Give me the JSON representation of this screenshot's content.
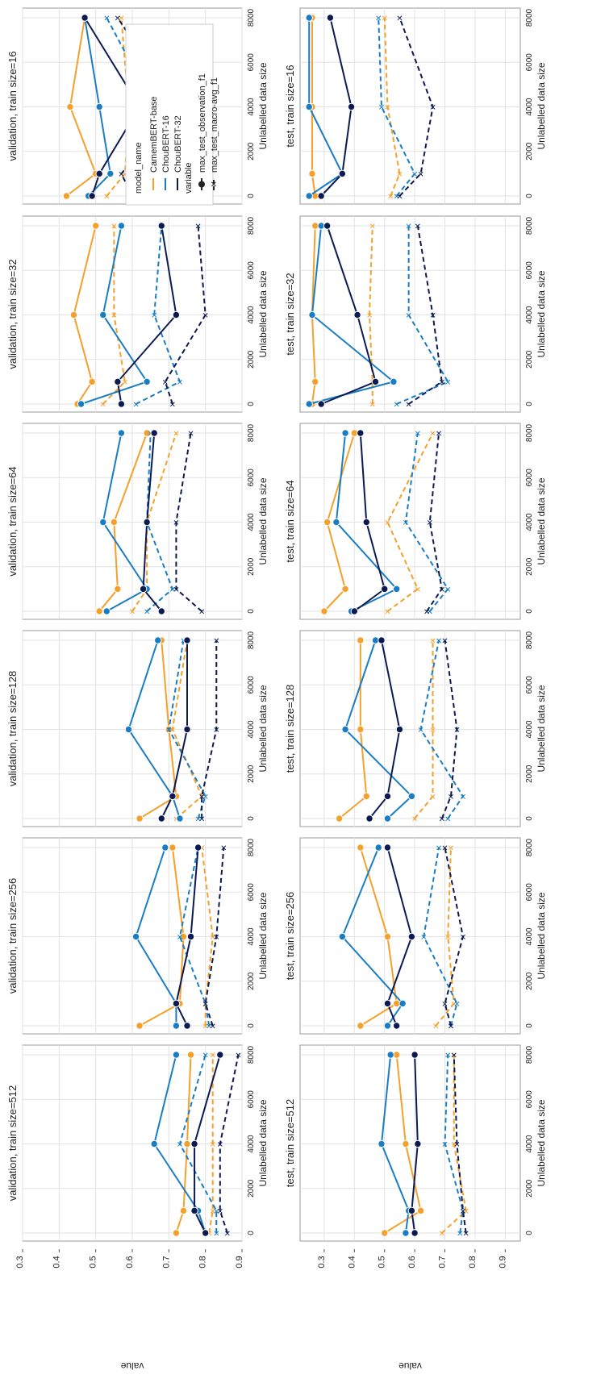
{
  "figure": {
    "ylabel_text": "value",
    "xlabel_text": "Unlabelled data size",
    "legend": {
      "title1": "model_name",
      "models": [
        "CamemBERT-base",
        "ChouBERT-16",
        "ChouBERT-32"
      ],
      "title2": "variable",
      "variables": [
        "max_test_observation_f1",
        "max_test_macro-avg_f1"
      ]
    },
    "colors": {
      "CamemBERT-base": "#f5a02a",
      "ChouBERT-16": "#1a7dc4",
      "ChouBERT-32": "#0c1a52"
    }
  },
  "chart_data": [
    {
      "type": "line",
      "title": "validation, train size=16",
      "xlabel": "Unlabelled data size",
      "ylabel": "value",
      "xlim": [
        0,
        8000
      ],
      "ylim": [
        0.3,
        0.9
      ],
      "x": [
        0,
        1000,
        4000,
        8000
      ],
      "series": [
        {
          "model": "CamemBERT-base",
          "variable": "max_test_observation_f1",
          "values": [
            0.42,
            0.5,
            0.43,
            0.47
          ]
        },
        {
          "model": "CamemBERT-base",
          "variable": "max_test_macro-avg_f1",
          "values": [
            0.53,
            0.58,
            0.59,
            0.57
          ]
        },
        {
          "model": "ChouBERT-16",
          "variable": "max_test_observation_f1",
          "values": [
            0.48,
            0.54,
            0.51,
            0.47
          ]
        },
        {
          "model": "ChouBERT-16",
          "variable": "max_test_macro-avg_f1",
          "values": [
            0.59,
            0.65,
            0.66,
            0.53
          ]
        },
        {
          "model": "ChouBERT-32",
          "variable": "max_test_observation_f1",
          "values": [
            0.49,
            0.51,
            0.62,
            0.47
          ]
        },
        {
          "model": "ChouBERT-32",
          "variable": "max_test_macro-avg_f1",
          "values": [
            0.6,
            0.57,
            0.72,
            0.56
          ]
        }
      ]
    },
    {
      "type": "line",
      "title": "validation, train size=32",
      "xlabel": "Unlabelled data size",
      "ylabel": "value",
      "xlim": [
        0,
        8000
      ],
      "ylim": [
        0.3,
        0.9
      ],
      "x": [
        0,
        1000,
        4000,
        8000
      ],
      "series": [
        {
          "model": "CamemBERT-base",
          "variable": "max_test_observation_f1",
          "values": [
            0.45,
            0.49,
            0.44,
            0.5
          ]
        },
        {
          "model": "CamemBERT-base",
          "variable": "max_test_macro-avg_f1",
          "values": [
            0.52,
            0.58,
            0.55,
            0.55
          ]
        },
        {
          "model": "ChouBERT-16",
          "variable": "max_test_observation_f1",
          "values": [
            0.46,
            0.64,
            0.52,
            0.57
          ]
        },
        {
          "model": "ChouBERT-16",
          "variable": "max_test_macro-avg_f1",
          "values": [
            0.61,
            0.73,
            0.66,
            0.68
          ]
        },
        {
          "model": "ChouBERT-32",
          "variable": "max_test_observation_f1",
          "values": [
            0.57,
            0.56,
            0.72,
            0.68
          ]
        },
        {
          "model": "ChouBERT-32",
          "variable": "max_test_macro-avg_f1",
          "values": [
            0.71,
            0.69,
            0.8,
            0.78
          ]
        }
      ]
    },
    {
      "type": "line",
      "title": "validation, train size=64",
      "xlabel": "Unlabelled data size",
      "ylabel": "value",
      "xlim": [
        0,
        8000
      ],
      "ylim": [
        0.3,
        0.9
      ],
      "x": [
        0,
        1000,
        4000,
        8000
      ],
      "series": [
        {
          "model": "CamemBERT-base",
          "variable": "max_test_observation_f1",
          "values": [
            0.51,
            0.56,
            0.55,
            0.64
          ]
        },
        {
          "model": "CamemBERT-base",
          "variable": "max_test_macro-avg_f1",
          "values": [
            0.6,
            0.64,
            0.64,
            0.72
          ]
        },
        {
          "model": "ChouBERT-16",
          "variable": "max_test_observation_f1",
          "values": [
            0.53,
            0.64,
            0.52,
            0.57
          ]
        },
        {
          "model": "ChouBERT-16",
          "variable": "max_test_macro-avg_f1",
          "values": [
            0.64,
            0.71,
            0.64,
            0.65
          ]
        },
        {
          "model": "ChouBERT-32",
          "variable": "max_test_observation_f1",
          "values": [
            0.68,
            0.63,
            0.64,
            0.66
          ]
        },
        {
          "model": "ChouBERT-32",
          "variable": "max_test_macro-avg_f1",
          "values": [
            0.79,
            0.72,
            0.72,
            0.76
          ]
        }
      ]
    },
    {
      "type": "line",
      "title": "validation, train size=128",
      "xlabel": "Unlabelled data size",
      "ylabel": "value",
      "xlim": [
        0,
        8000
      ],
      "ylim": [
        0.3,
        0.9
      ],
      "x": [
        0,
        1000,
        4000,
        8000
      ],
      "series": [
        {
          "model": "CamemBERT-base",
          "variable": "max_test_observation_f1",
          "values": [
            0.62,
            0.72,
            0.7,
            0.68
          ]
        },
        {
          "model": "CamemBERT-base",
          "variable": "max_test_macro-avg_f1",
          "values": [
            0.72,
            0.79,
            0.71,
            0.75
          ]
        },
        {
          "model": "ChouBERT-16",
          "variable": "max_test_observation_f1",
          "values": [
            0.73,
            0.71,
            0.59,
            0.67
          ]
        },
        {
          "model": "ChouBERT-16",
          "variable": "max_test_macro-avg_f1",
          "values": [
            0.78,
            0.8,
            0.7,
            0.74
          ]
        },
        {
          "model": "ChouBERT-32",
          "variable": "max_test_observation_f1",
          "values": [
            0.68,
            0.71,
            0.75,
            0.75
          ]
        },
        {
          "model": "ChouBERT-32",
          "variable": "max_test_macro-avg_f1",
          "values": [
            0.79,
            0.79,
            0.83,
            0.83
          ]
        }
      ]
    },
    {
      "type": "line",
      "title": "validation, train size=256",
      "xlabel": "Unlabelled data size",
      "ylabel": "value",
      "xlim": [
        0,
        8000
      ],
      "ylim": [
        0.3,
        0.9
      ],
      "x": [
        0,
        1000,
        4000,
        8000
      ],
      "series": [
        {
          "model": "CamemBERT-base",
          "variable": "max_test_observation_f1",
          "values": [
            0.62,
            0.73,
            0.74,
            0.71
          ]
        },
        {
          "model": "CamemBERT-base",
          "variable": "max_test_macro-avg_f1",
          "values": [
            0.8,
            0.8,
            0.82,
            0.79
          ]
        },
        {
          "model": "ChouBERT-16",
          "variable": "max_test_observation_f1",
          "values": [
            0.72,
            0.72,
            0.61,
            0.69
          ]
        },
        {
          "model": "ChouBERT-16",
          "variable": "max_test_macro-avg_f1",
          "values": [
            0.81,
            0.8,
            0.73,
            0.78
          ]
        },
        {
          "model": "ChouBERT-32",
          "variable": "max_test_observation_f1",
          "values": [
            0.75,
            0.72,
            0.76,
            0.78
          ]
        },
        {
          "model": "ChouBERT-32",
          "variable": "max_test_macro-avg_f1",
          "values": [
            0.82,
            0.8,
            0.83,
            0.85
          ]
        }
      ]
    },
    {
      "type": "line",
      "title": "validation, train size=512",
      "xlabel": "Unlabelled data size",
      "ylabel": "value",
      "xlim": [
        0,
        8000
      ],
      "ylim": [
        0.3,
        0.9
      ],
      "x": [
        0,
        1000,
        4000,
        8000
      ],
      "series": [
        {
          "model": "CamemBERT-base",
          "variable": "max_test_observation_f1",
          "values": [
            0.72,
            0.74,
            0.75,
            0.76
          ]
        },
        {
          "model": "CamemBERT-base",
          "variable": "max_test_macro-avg_f1",
          "values": [
            0.81,
            0.82,
            0.82,
            0.82
          ]
        },
        {
          "model": "ChouBERT-16",
          "variable": "max_test_observation_f1",
          "values": [
            0.8,
            0.78,
            0.66,
            0.72
          ]
        },
        {
          "model": "ChouBERT-16",
          "variable": "max_test_macro-avg_f1",
          "values": [
            0.83,
            0.83,
            0.73,
            0.8
          ]
        },
        {
          "model": "ChouBERT-32",
          "variable": "max_test_observation_f1",
          "values": [
            0.8,
            0.77,
            0.77,
            0.84
          ]
        },
        {
          "model": "ChouBERT-32",
          "variable": "max_test_macro-avg_f1",
          "values": [
            0.86,
            0.84,
            0.84,
            0.89
          ]
        }
      ]
    },
    {
      "type": "line",
      "title": "test, train size=16",
      "xlabel": "Unlabelled data size",
      "ylabel": "value",
      "xlim": [
        0,
        8000
      ],
      "ylim": [
        0.22,
        0.95
      ],
      "x": [
        0,
        1000,
        4000,
        8000
      ],
      "series": [
        {
          "model": "CamemBERT-base",
          "variable": "max_test_observation_f1",
          "values": [
            0.27,
            0.26,
            0.26,
            0.26
          ]
        },
        {
          "model": "CamemBERT-base",
          "variable": "max_test_macro-avg_f1",
          "values": [
            0.52,
            0.55,
            0.51,
            0.5
          ]
        },
        {
          "model": "ChouBERT-16",
          "variable": "max_test_observation_f1",
          "values": [
            0.25,
            0.36,
            0.25,
            0.25
          ]
        },
        {
          "model": "ChouBERT-16",
          "variable": "max_test_macro-avg_f1",
          "values": [
            0.54,
            0.6,
            0.49,
            0.48
          ]
        },
        {
          "model": "ChouBERT-32",
          "variable": "max_test_observation_f1",
          "values": [
            0.29,
            0.36,
            0.39,
            0.32
          ]
        },
        {
          "model": "ChouBERT-32",
          "variable": "max_test_macro-avg_f1",
          "values": [
            0.55,
            0.62,
            0.66,
            0.55
          ]
        }
      ]
    },
    {
      "type": "line",
      "title": "test, train size=32",
      "xlabel": "Unlabelled data size",
      "ylabel": "value",
      "xlim": [
        0,
        8000
      ],
      "ylim": [
        0.22,
        0.95
      ],
      "x": [
        0,
        1000,
        4000,
        8000
      ],
      "series": [
        {
          "model": "CamemBERT-base",
          "variable": "max_test_observation_f1",
          "values": [
            0.26,
            0.27,
            0.26,
            0.27
          ]
        },
        {
          "model": "CamemBERT-base",
          "variable": "max_test_macro-avg_f1",
          "values": [
            0.46,
            0.46,
            0.45,
            0.46
          ]
        },
        {
          "model": "ChouBERT-16",
          "variable": "max_test_observation_f1",
          "values": [
            0.25,
            0.53,
            0.26,
            0.29
          ]
        },
        {
          "model": "ChouBERT-16",
          "variable": "max_test_macro-avg_f1",
          "values": [
            0.54,
            0.71,
            0.58,
            0.58
          ]
        },
        {
          "model": "ChouBERT-32",
          "variable": "max_test_observation_f1",
          "values": [
            0.29,
            0.47,
            0.41,
            0.31
          ]
        },
        {
          "model": "ChouBERT-32",
          "variable": "max_test_macro-avg_f1",
          "values": [
            0.58,
            0.69,
            0.66,
            0.61
          ]
        }
      ]
    },
    {
      "type": "line",
      "title": "test, train size=64",
      "xlabel": "Unlabelled data size",
      "ylabel": "value",
      "xlim": [
        0,
        8000
      ],
      "ylim": [
        0.22,
        0.95
      ],
      "x": [
        0,
        1000,
        4000,
        8000
      ],
      "series": [
        {
          "model": "CamemBERT-base",
          "variable": "max_test_observation_f1",
          "values": [
            0.3,
            0.37,
            0.31,
            0.4
          ]
        },
        {
          "model": "CamemBERT-base",
          "variable": "max_test_macro-avg_f1",
          "values": [
            0.51,
            0.61,
            0.51,
            0.66
          ]
        },
        {
          "model": "ChouBERT-16",
          "variable": "max_test_observation_f1",
          "values": [
            0.39,
            0.54,
            0.34,
            0.37
          ]
        },
        {
          "model": "ChouBERT-16",
          "variable": "max_test_macro-avg_f1",
          "values": [
            0.65,
            0.71,
            0.57,
            0.61
          ]
        },
        {
          "model": "ChouBERT-32",
          "variable": "max_test_observation_f1",
          "values": [
            0.4,
            0.5,
            0.44,
            0.42
          ]
        },
        {
          "model": "ChouBERT-32",
          "variable": "max_test_macro-avg_f1",
          "values": [
            0.64,
            0.69,
            0.65,
            0.68
          ]
        }
      ]
    },
    {
      "type": "line",
      "title": "test, train size=128",
      "xlabel": "Unlabelled data size",
      "ylabel": "value",
      "xlim": [
        0,
        8000
      ],
      "ylim": [
        0.22,
        0.95
      ],
      "x": [
        0,
        1000,
        4000,
        8000
      ],
      "series": [
        {
          "model": "CamemBERT-base",
          "variable": "max_test_observation_f1",
          "values": [
            0.35,
            0.44,
            0.42,
            0.42
          ]
        },
        {
          "model": "CamemBERT-base",
          "variable": "max_test_macro-avg_f1",
          "values": [
            0.6,
            0.66,
            0.66,
            0.66
          ]
        },
        {
          "model": "ChouBERT-16",
          "variable": "max_test_observation_f1",
          "values": [
            0.51,
            0.59,
            0.37,
            0.47
          ]
        },
        {
          "model": "ChouBERT-16",
          "variable": "max_test_macro-avg_f1",
          "values": [
            0.71,
            0.76,
            0.62,
            0.68
          ]
        },
        {
          "model": "ChouBERT-32",
          "variable": "max_test_observation_f1",
          "values": [
            0.45,
            0.51,
            0.55,
            0.49
          ]
        },
        {
          "model": "ChouBERT-32",
          "variable": "max_test_macro-avg_f1",
          "values": [
            0.69,
            0.72,
            0.74,
            0.7
          ]
        }
      ]
    },
    {
      "type": "line",
      "title": "test, train size=256",
      "xlabel": "Unlabelled data size",
      "ylabel": "value",
      "xlim": [
        0,
        8000
      ],
      "ylim": [
        0.22,
        0.95
      ],
      "x": [
        0,
        1000,
        4000,
        8000
      ],
      "series": [
        {
          "model": "CamemBERT-base",
          "variable": "max_test_observation_f1",
          "values": [
            0.42,
            0.54,
            0.51,
            0.42
          ]
        },
        {
          "model": "CamemBERT-base",
          "variable": "max_test_macro-avg_f1",
          "values": [
            0.67,
            0.73,
            0.71,
            0.72
          ]
        },
        {
          "model": "ChouBERT-16",
          "variable": "max_test_observation_f1",
          "values": [
            0.51,
            0.56,
            0.36,
            0.48
          ]
        },
        {
          "model": "ChouBERT-16",
          "variable": "max_test_macro-avg_f1",
          "values": [
            0.72,
            0.74,
            0.63,
            0.68
          ]
        },
        {
          "model": "ChouBERT-32",
          "variable": "max_test_observation_f1",
          "values": [
            0.54,
            0.51,
            0.59,
            0.51
          ]
        },
        {
          "model": "ChouBERT-32",
          "variable": "max_test_macro-avg_f1",
          "values": [
            0.72,
            0.7,
            0.76,
            0.7
          ]
        }
      ]
    },
    {
      "type": "line",
      "title": "test, train size=512",
      "xlabel": "Unlabelled data size",
      "ylabel": "value",
      "xlim": [
        0,
        8000
      ],
      "ylim": [
        0.22,
        0.95
      ],
      "x": [
        0,
        1000,
        4000,
        8000
      ],
      "series": [
        {
          "model": "CamemBERT-base",
          "variable": "max_test_observation_f1",
          "values": [
            0.5,
            0.62,
            0.57,
            0.54
          ]
        },
        {
          "model": "CamemBERT-base",
          "variable": "max_test_macro-avg_f1",
          "values": [
            0.69,
            0.77,
            0.73,
            0.73
          ]
        },
        {
          "model": "ChouBERT-16",
          "variable": "max_test_observation_f1",
          "values": [
            0.57,
            0.58,
            0.49,
            0.52
          ]
        },
        {
          "model": "ChouBERT-16",
          "variable": "max_test_macro-avg_f1",
          "values": [
            0.75,
            0.76,
            0.7,
            0.71
          ]
        },
        {
          "model": "ChouBERT-32",
          "variable": "max_test_observation_f1",
          "values": [
            0.6,
            0.59,
            0.61,
            0.6
          ]
        },
        {
          "model": "ChouBERT-32",
          "variable": "max_test_macro-avg_f1",
          "values": [
            0.77,
            0.76,
            0.74,
            0.73
          ]
        }
      ]
    }
  ]
}
